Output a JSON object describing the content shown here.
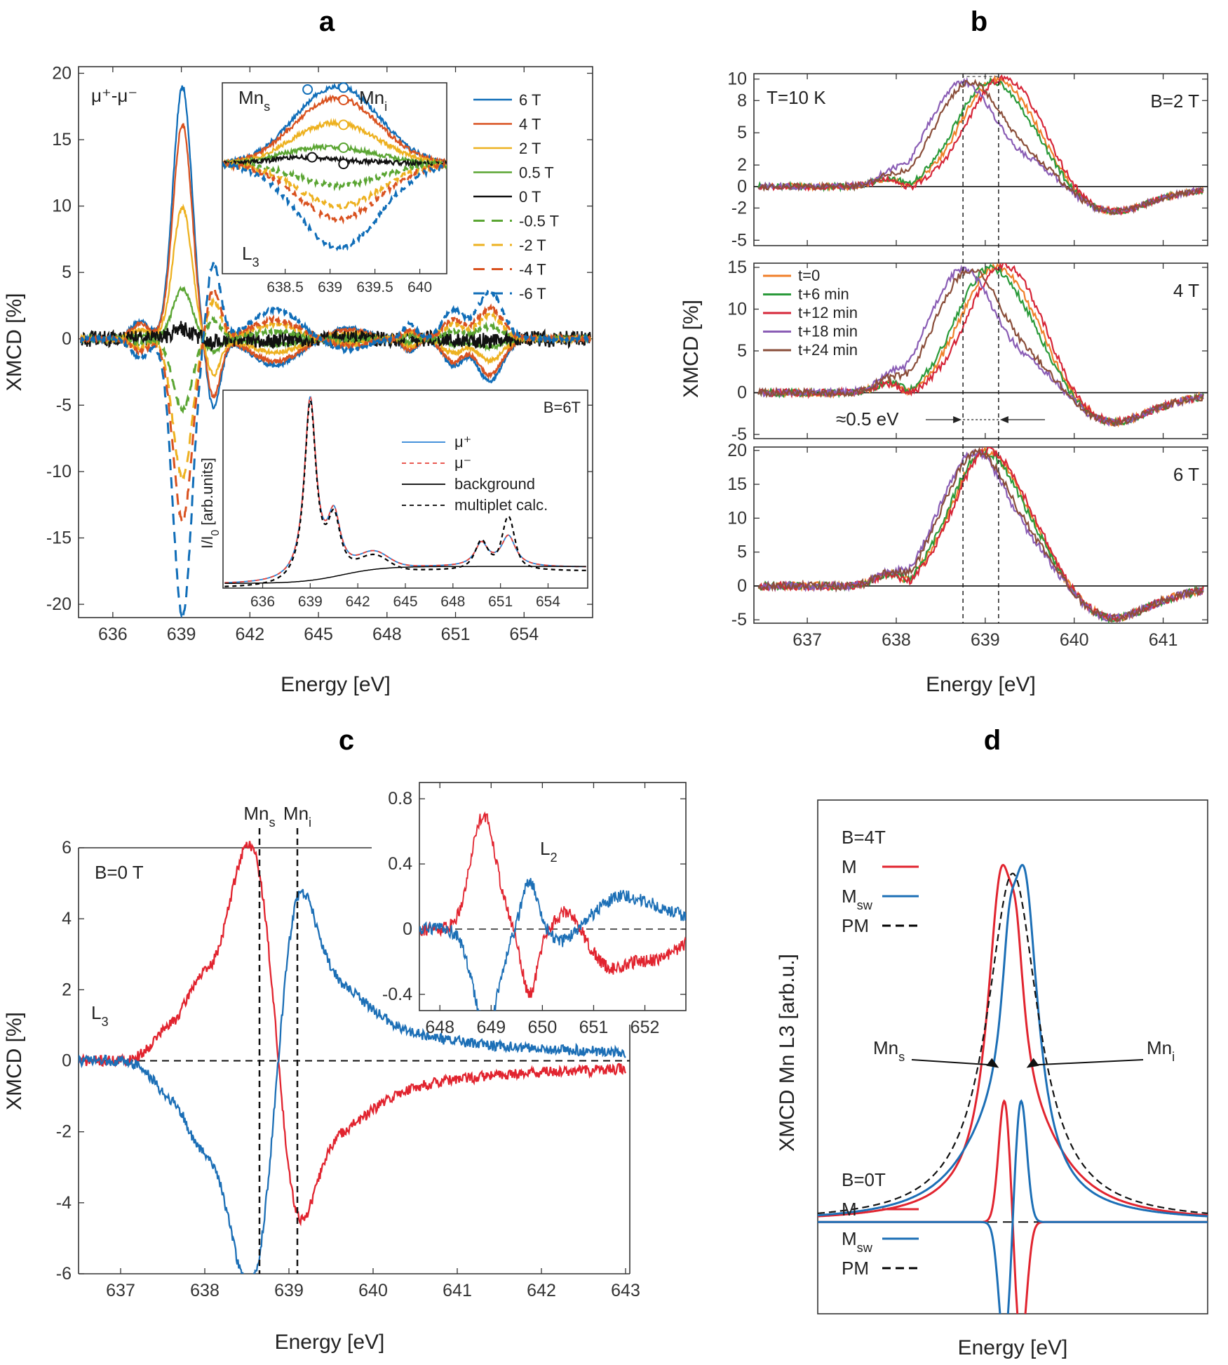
{
  "panel_letters": {
    "a": "a",
    "b": "b",
    "c": "c",
    "d": "d"
  },
  "chart_data": [
    {
      "id": "a",
      "type": "line",
      "title": "",
      "xlabel": "Energy [eV]",
      "ylabel": "XMCD [%]",
      "xlim": [
        634.5,
        657
      ],
      "ylim": [
        -21,
        20.5
      ],
      "xticks": [
        636,
        639,
        642,
        645,
        648,
        651,
        654
      ],
      "yticks": [
        -20,
        -15,
        -10,
        -5,
        0,
        5,
        10,
        15,
        20
      ],
      "annotation": "μ⁺-μ⁻",
      "series": [
        {
          "name": "6 T",
          "color": "#0f6db8",
          "dash": false,
          "amp": 1.0
        },
        {
          "name": "4 T",
          "color": "#d95220",
          "dash": false,
          "amp": 0.85
        },
        {
          "name": "2 T",
          "color": "#edb120",
          "dash": false,
          "amp": 0.52
        },
        {
          "name": "0.5 T",
          "color": "#5aa532",
          "dash": false,
          "amp": 0.2
        },
        {
          "name": "0 T",
          "color": "#111111",
          "dash": false,
          "amp": 0.04
        },
        {
          "name": "-0.5 T",
          "color": "#5aa532",
          "dash": true,
          "amp": -0.28
        },
        {
          "name": "-2 T",
          "color": "#edb120",
          "dash": true,
          "amp": -0.55
        },
        {
          "name": "-4 T",
          "color": "#d95220",
          "dash": true,
          "amp": -0.72
        },
        {
          "name": "-6 T",
          "color": "#0f6db8",
          "dash": true,
          "amp": -1.1
        }
      ],
      "peaks_eV": [
        [
          639.0,
          19.0
        ],
        [
          640.6,
          -5.5
        ],
        [
          643.0,
          -2.0
        ],
        [
          651.0,
          -2.0
        ],
        [
          652.6,
          -3.0
        ]
      ],
      "inset_top": {
        "label": "L",
        "label_sub": "3",
        "site_s": "Mn",
        "site_s_sub": "s",
        "site_i": "Mn",
        "site_i_sub": "i",
        "xlim": [
          637.8,
          640.3
        ],
        "xticks": [
          "638.5",
          "639",
          "639.5",
          "640"
        ]
      },
      "inset_bottom": {
        "label": "B=6T",
        "ylabel": "I/I",
        "ylabel_sub": "0",
        "ylabel_suffix": " [arb.units]",
        "xlim": [
          633.5,
          656.5
        ],
        "xticks": [
          "636",
          "639",
          "642",
          "645",
          "648",
          "651",
          "654"
        ],
        "legend": [
          {
            "name": "μ⁺",
            "color": "#2b83d6",
            "dash": false
          },
          {
            "name": "μ⁻",
            "color": "#e8433a",
            "dash": true
          },
          {
            "name": "background",
            "color": "#000000",
            "dash": false
          },
          {
            "name": "multiplet calc.",
            "color": "#000000",
            "dash": true
          }
        ]
      }
    },
    {
      "id": "b",
      "type": "line",
      "xlabel": "Energy [eV]",
      "ylabel": "XMCD [%]",
      "xlim": [
        636.4,
        641.5
      ],
      "xticks": [
        637,
        638,
        639,
        640,
        641
      ],
      "vlines_eV": [
        638.75,
        639.15
      ],
      "shift_label": "≈0.5 eV",
      "temperature_label": "T=10 K",
      "subplots": [
        {
          "label": "B=2 T",
          "ylim": [
            -5.5,
            10.5
          ],
          "yticks": [
            -5,
            -2,
            0,
            2,
            5,
            8,
            10
          ]
        },
        {
          "label": "4 T",
          "ylim": [
            -5.5,
            15.5
          ],
          "yticks": [
            -5,
            0,
            5,
            10,
            15
          ]
        },
        {
          "label": "6 T",
          "ylim": [
            -5.5,
            20.5
          ],
          "yticks": [
            -5,
            0,
            5,
            10,
            15,
            20
          ]
        }
      ],
      "series": [
        {
          "name": "t=0",
          "color": "#f07f2a",
          "shift": 0.15
        },
        {
          "name": "t+6 min",
          "color": "#2a9a3a",
          "shift": 0.1
        },
        {
          "name": "t+12 min",
          "color": "#d62638",
          "shift": 0.22
        },
        {
          "name": "t+18 min",
          "color": "#8a5db5",
          "shift": -0.2
        },
        {
          "name": "t+24 min",
          "color": "#8a4e3a",
          "shift": -0.12
        }
      ]
    },
    {
      "id": "c",
      "type": "line",
      "xlabel": "Energy [eV]",
      "ylabel": "XMCD [%]",
      "xlim": [
        636.5,
        643.05
      ],
      "ylim": [
        -6,
        6
      ],
      "xticks": [
        637,
        638,
        639,
        640,
        641,
        642,
        643
      ],
      "yticks": [
        -6,
        -4,
        -2,
        0,
        2,
        4,
        6
      ],
      "field_label": "B=0 T",
      "edge_label": "L",
      "edge_sub": "3",
      "vlines": [
        {
          "x": 638.65,
          "label": "Mn",
          "sub": "s"
        },
        {
          "x": 639.1,
          "label": "Mn",
          "sub": "i"
        }
      ],
      "series": [
        {
          "name": "red",
          "color": "#e1242f"
        },
        {
          "name": "blue",
          "color": "#1c6fb6"
        }
      ],
      "inset": {
        "label": "L",
        "label_sub": "2",
        "xlim": [
          647.6,
          652.8
        ],
        "ylim": [
          -0.5,
          0.9
        ],
        "xticks": [
          648,
          649,
          650,
          651,
          652
        ],
        "yticks": [
          "-0.4",
          "0",
          "0.4",
          "0.8"
        ]
      }
    },
    {
      "id": "d",
      "type": "line",
      "xlabel": "Energy [eV]",
      "ylabel": "XMCD  Mn L3 [arb.u.]",
      "legend_top": {
        "title": "B=4T",
        "items": [
          {
            "name": "M",
            "color": "#e1242f",
            "dash": false
          },
          {
            "name": "M",
            "sub": "sw",
            "color": "#1c6fb6",
            "dash": false
          },
          {
            "name": "PM",
            "color": "#000000",
            "dash": true
          }
        ]
      },
      "legend_bottom": {
        "title": "B=0T",
        "items": [
          {
            "name": "M",
            "color": "#e1242f",
            "dash": false
          },
          {
            "name": "M",
            "sub": "sw",
            "color": "#1c6fb6",
            "dash": false
          },
          {
            "name": "PM",
            "color": "#000000",
            "dash": true
          }
        ]
      },
      "arrow_labels": [
        {
          "name": "Mn",
          "sub": "s"
        },
        {
          "name": "Mn",
          "sub": "i"
        }
      ]
    }
  ]
}
